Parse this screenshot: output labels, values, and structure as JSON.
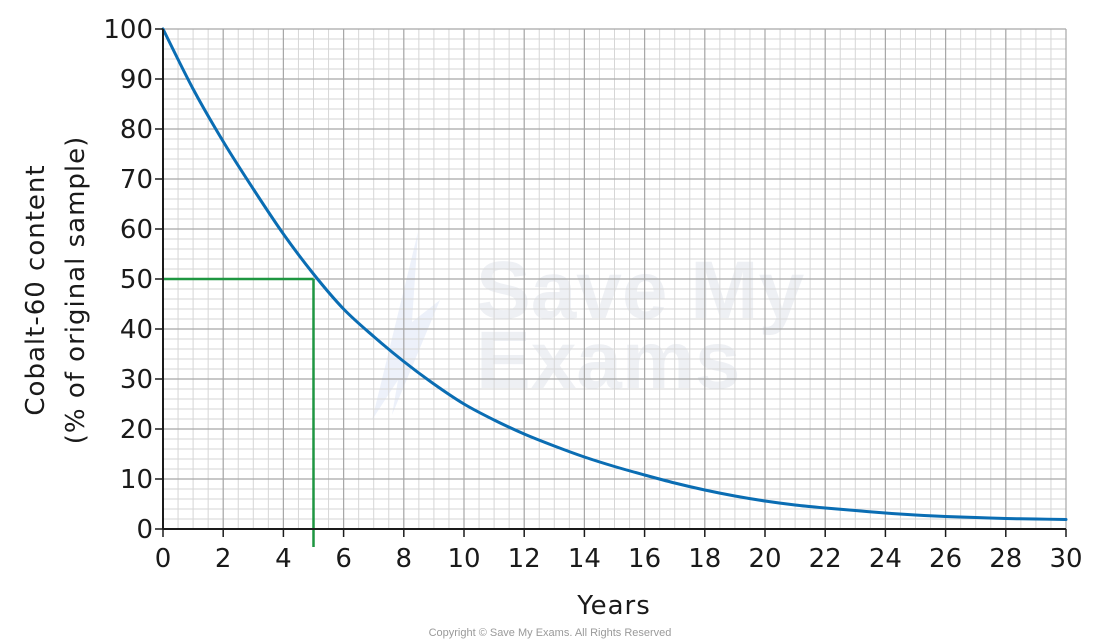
{
  "chart_data": {
    "type": "line",
    "xlabel": "Years",
    "ylabel_line1": "Cobalt-60 content",
    "ylabel_line2": "(% of original sample)",
    "xlim": [
      0,
      30
    ],
    "ylim": [
      0,
      100
    ],
    "x_major_ticks": [
      0,
      2,
      4,
      6,
      8,
      10,
      12,
      14,
      16,
      18,
      20,
      22,
      24,
      26,
      28,
      30
    ],
    "y_major_ticks": [
      0,
      10,
      20,
      30,
      40,
      50,
      60,
      70,
      80,
      90,
      100
    ],
    "x_minor_step": 0.5,
    "y_minor_step": 2,
    "grid": true,
    "series": [
      {
        "color": "#0a6db3",
        "x": [
          0,
          1,
          2,
          3,
          4,
          5,
          6,
          7,
          8,
          9,
          10,
          11,
          12,
          13,
          14,
          15,
          16,
          17,
          18,
          19,
          20,
          21,
          22,
          23,
          24,
          25,
          26,
          27,
          28,
          29,
          30
        ],
        "y": [
          100,
          88,
          77.5,
          68,
          59,
          51,
          44,
          38.5,
          33.5,
          29,
          25,
          21.8,
          19,
          16.6,
          14.4,
          12.5,
          10.8,
          9.2,
          7.8,
          6.6,
          5.6,
          4.8,
          4.2,
          3.7,
          3.2,
          2.8,
          2.5,
          2.3,
          2.1,
          2.0,
          1.9
        ]
      }
    ],
    "annotations": [
      {
        "type": "half-life-guide",
        "color": "#1e9641",
        "x": 5,
        "y": 50
      }
    ]
  },
  "watermark": {
    "line1": "Save My",
    "line2": "Exams"
  },
  "copyright": "Copyright © Save My Exams. All Rights Reserved"
}
